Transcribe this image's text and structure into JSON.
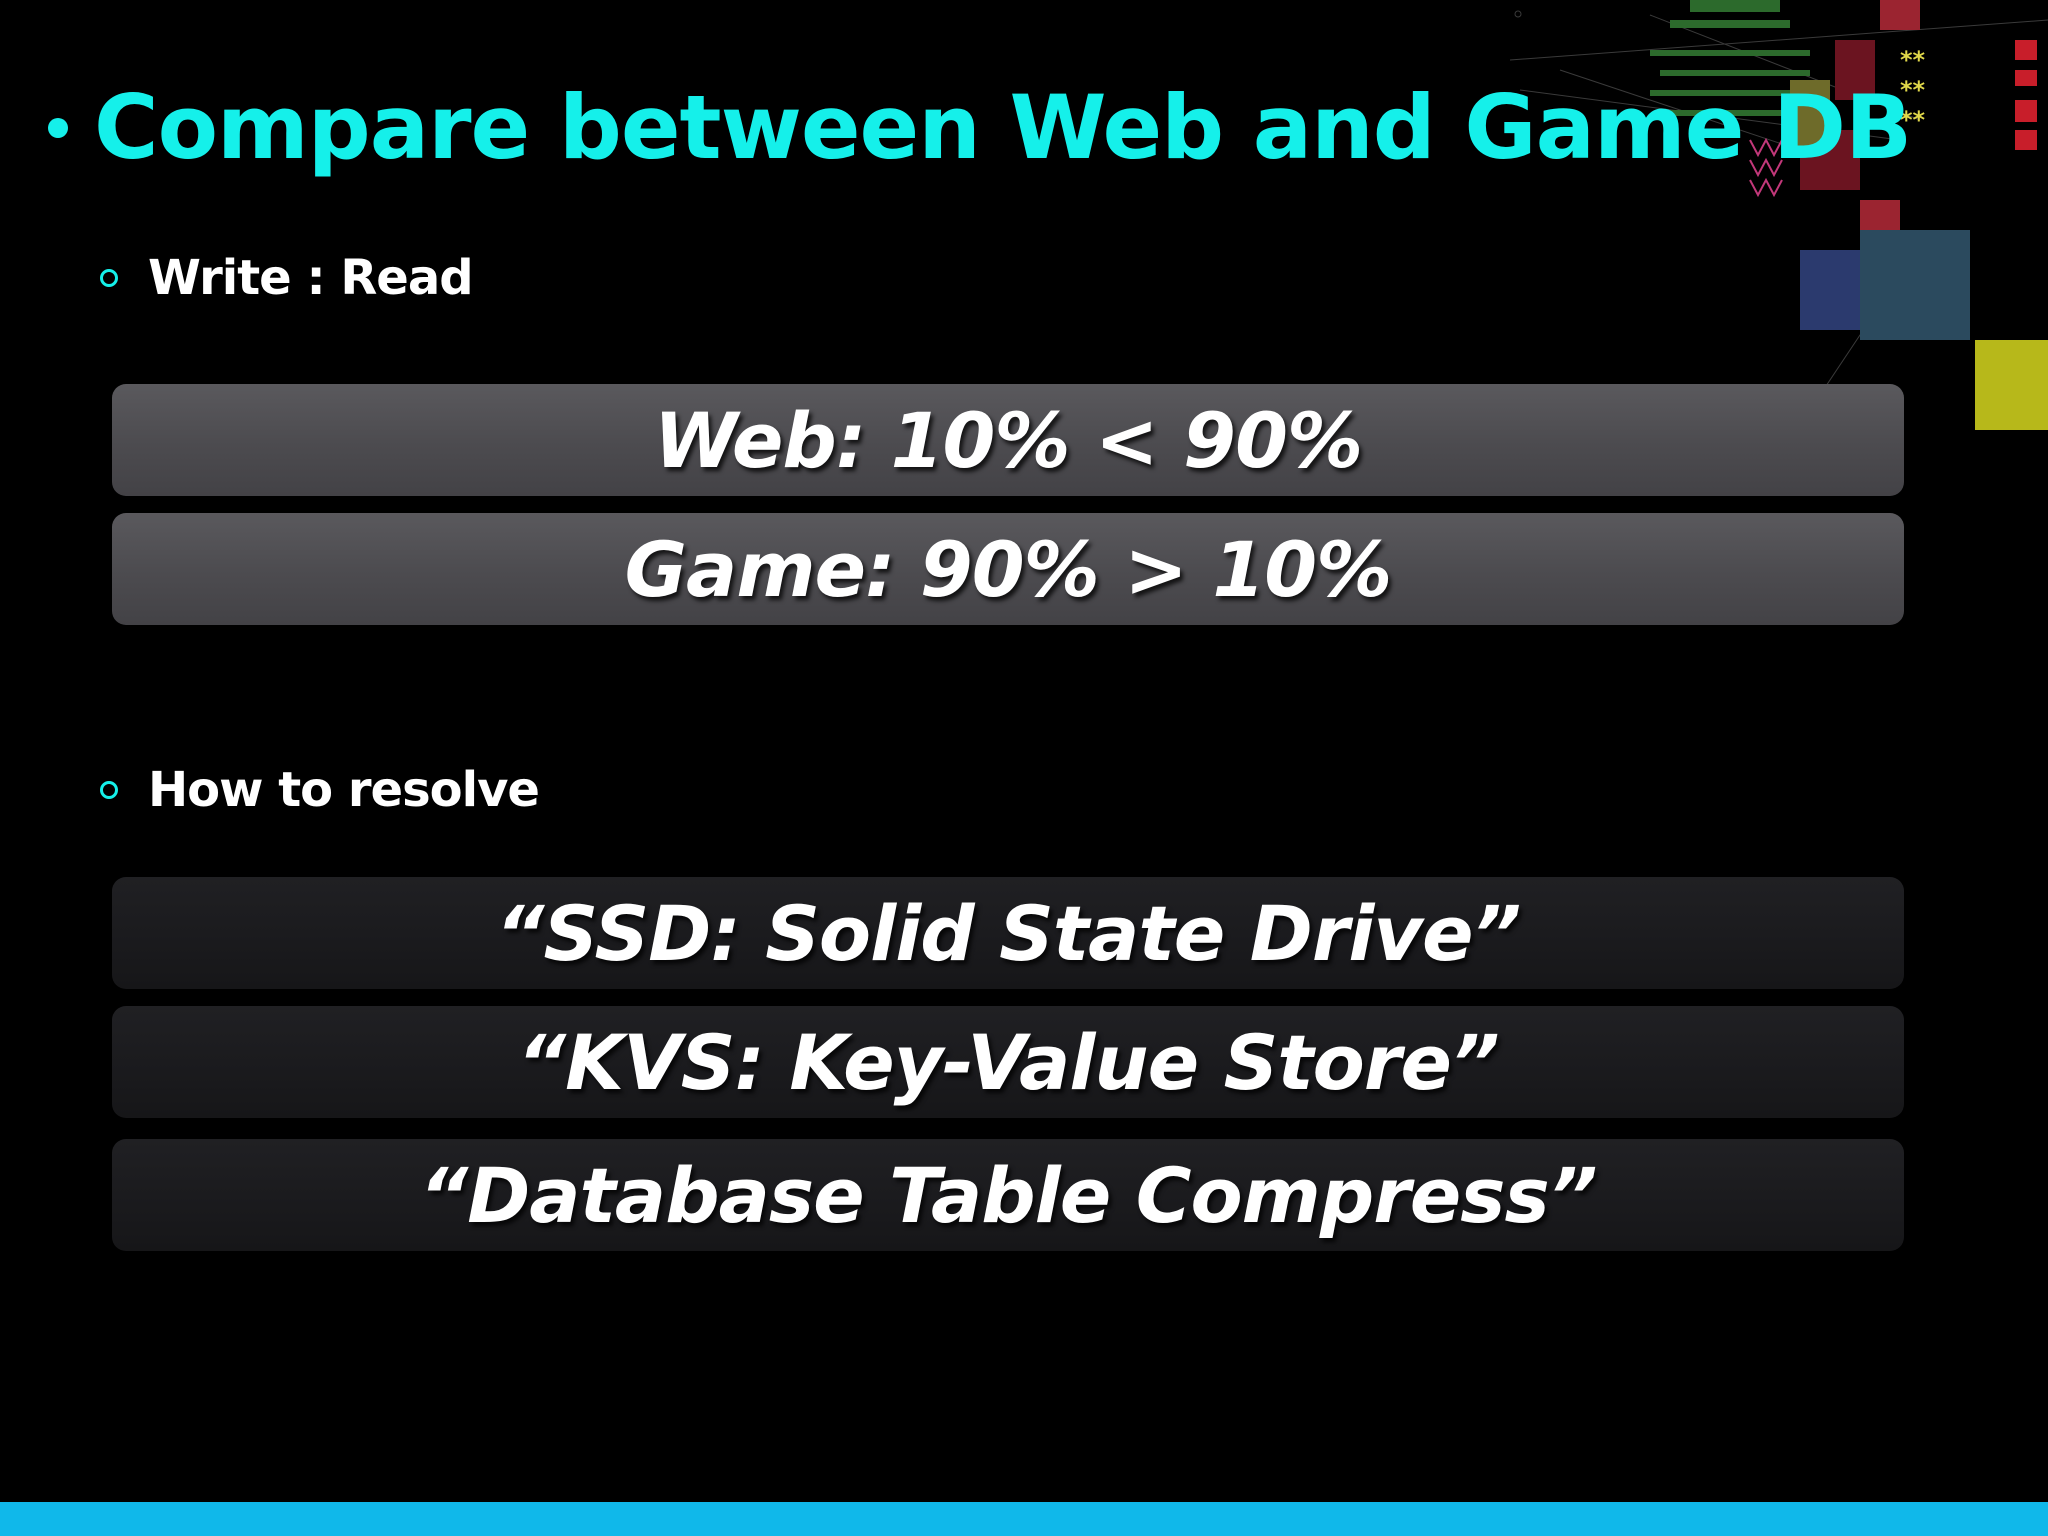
{
  "slide": {
    "title": "Compare between Web and Game DB",
    "sections": [
      {
        "heading": "Write : Read",
        "boxes": [
          "Web: 10% < 90%",
          "Game: 90% > 10%"
        ]
      },
      {
        "heading": "How to resolve",
        "boxes": [
          "“SSD: Solid State Drive”",
          "“KVS: Key-Value Store”",
          "“Database Table Compress”"
        ]
      }
    ]
  },
  "colors": {
    "accent": "#15f0ea",
    "bottom_bar": "#10b8ea",
    "background": "#000000"
  }
}
